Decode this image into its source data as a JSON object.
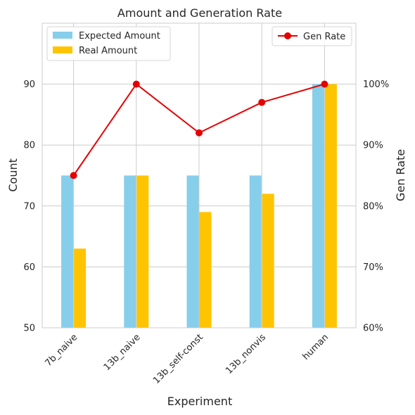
{
  "chart_data": {
    "type": "bar",
    "title": "Amount and Generation Rate",
    "xlabel": "Experiment",
    "ylabel": "Count",
    "y2label": "Gen Rate",
    "categories": [
      "7b_naive",
      "13b_naive",
      "13b_self-const",
      "13b_nonvis",
      "human"
    ],
    "ylim": [
      50,
      100
    ],
    "yticks": [
      50,
      60,
      70,
      80,
      90
    ],
    "y2lim": [
      60,
      110
    ],
    "y2ticks": [
      60,
      70,
      80,
      90,
      100
    ],
    "y2tick_labels": [
      "60%",
      "70%",
      "80%",
      "90%",
      "100%"
    ],
    "series": [
      {
        "name": "Expected Amount",
        "type": "bar",
        "axis": "left",
        "color": "#87ceeb",
        "values": [
          75,
          75,
          75,
          75,
          90
        ]
      },
      {
        "name": "Real Amount",
        "type": "bar",
        "axis": "left",
        "color": "#ffc400",
        "values": [
          63,
          75,
          69,
          72,
          90
        ]
      },
      {
        "name": "Gen Rate",
        "type": "line",
        "axis": "right",
        "color": "#e60000",
        "values": [
          85,
          100,
          92,
          97,
          100
        ]
      }
    ],
    "legend_left": "top-left",
    "legend_right": "top-right",
    "grid": true,
    "y2label_color": "#e60000"
  }
}
